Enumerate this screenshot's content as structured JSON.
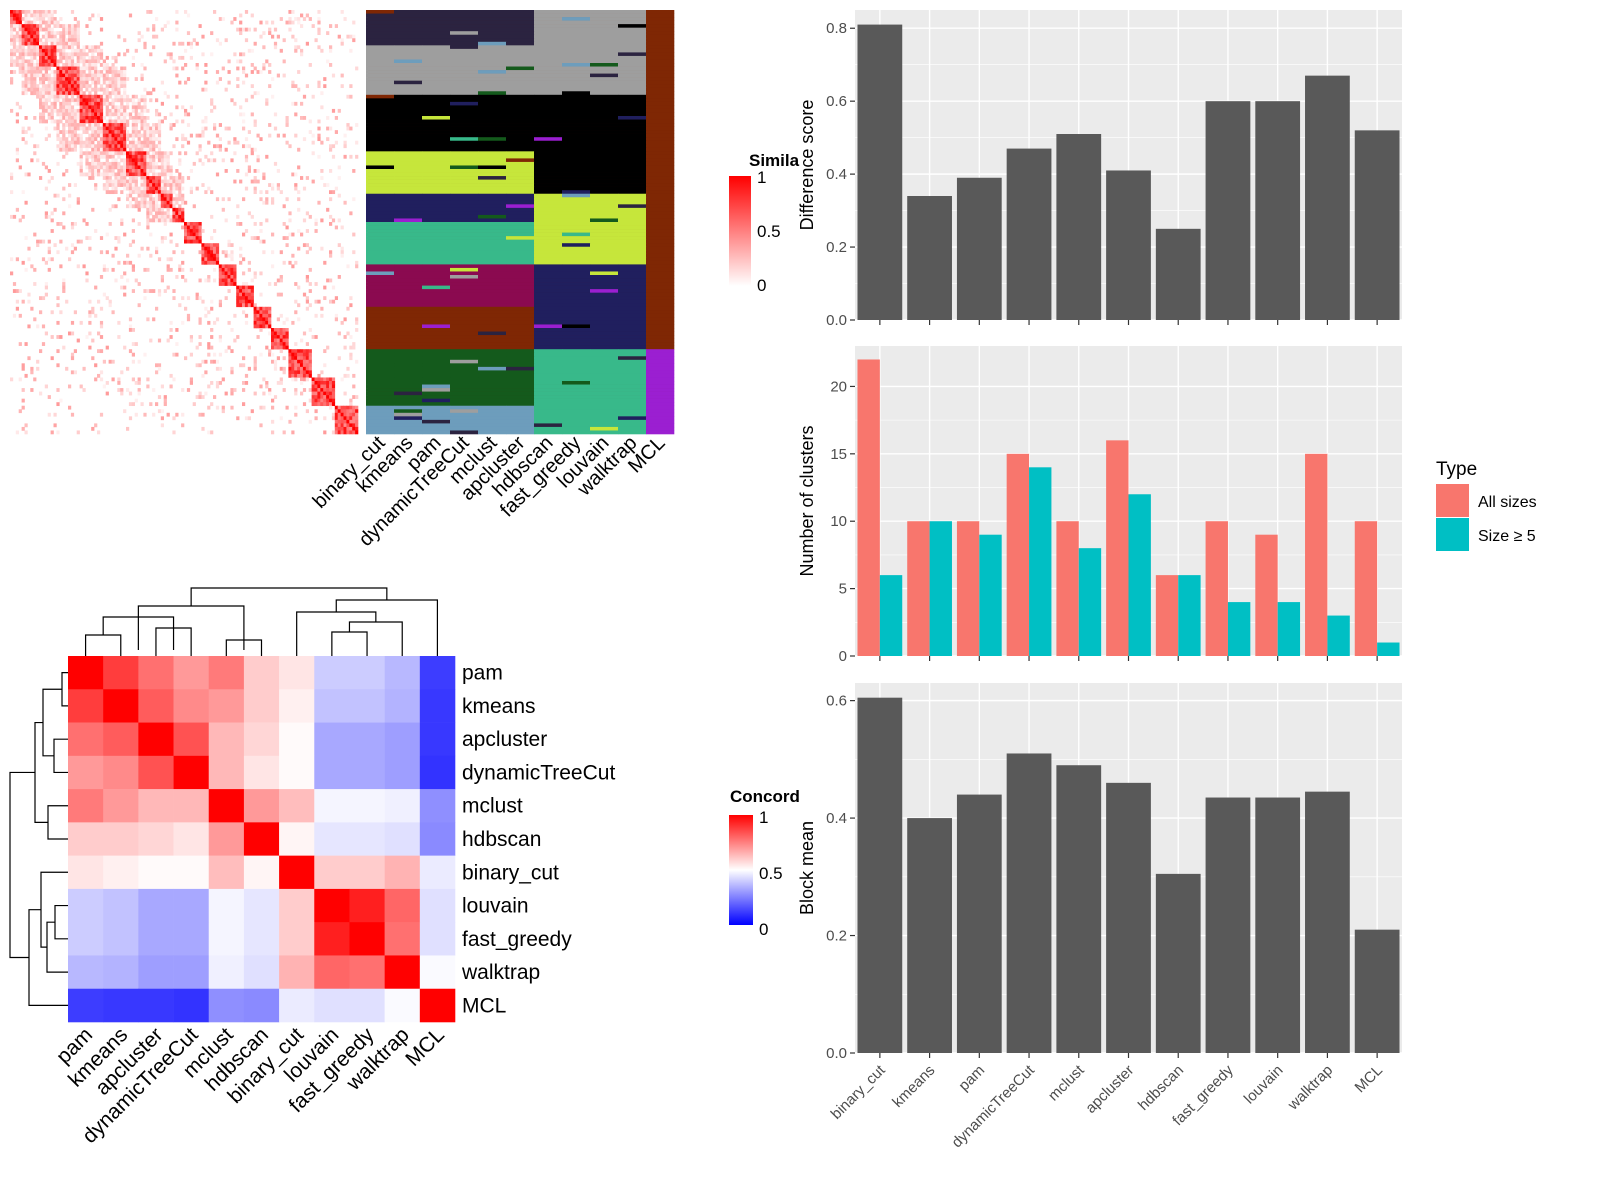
{
  "colors": {
    "panel_bg": "#ebebeb",
    "bar": "#595959",
    "all_sizes": "#f8766d",
    "size_ge5": "#00bfc4",
    "sim_high": "#ff0000",
    "sim_low": "#ffffff",
    "conc_high": "#ff0000",
    "conc_mid": "#ffffff",
    "conc_low": "#0000ff"
  },
  "chart_data": [
    {
      "type": "heatmap",
      "id": "similarity",
      "legend_title": "Simila",
      "legend_ticks": [
        "1",
        "0.5",
        "0"
      ],
      "scale": [
        0,
        1
      ],
      "size": 120
    },
    {
      "type": "heatmap",
      "id": "cluster_assignments",
      "columns": [
        "binary_cut",
        "kmeans",
        "pam",
        "dynamicTreeCut",
        "mclust",
        "apcluster",
        "hdbscan",
        "fast_greedy",
        "louvain",
        "walktrap",
        "MCL"
      ]
    },
    {
      "type": "heatmap",
      "id": "concordance",
      "legend_title": "Concord",
      "legend_ticks": [
        "1",
        "0.5",
        "0"
      ],
      "scale": [
        0,
        1
      ],
      "labels": [
        "pam",
        "kmeans",
        "apcluster",
        "dynamicTreeCut",
        "mclust",
        "hdbscan",
        "binary_cut",
        "louvain",
        "fast_greedy",
        "walktrap",
        "MCL"
      ],
      "matrix": [
        [
          1.0,
          0.88,
          0.78,
          0.7,
          0.76,
          0.6,
          0.55,
          0.4,
          0.4,
          0.36,
          0.12
        ],
        [
          0.88,
          1.0,
          0.82,
          0.73,
          0.7,
          0.6,
          0.53,
          0.38,
          0.38,
          0.35,
          0.11
        ],
        [
          0.78,
          0.82,
          1.0,
          0.84,
          0.64,
          0.58,
          0.51,
          0.33,
          0.33,
          0.31,
          0.11
        ],
        [
          0.7,
          0.73,
          0.84,
          1.0,
          0.64,
          0.55,
          0.51,
          0.33,
          0.33,
          0.31,
          0.1
        ],
        [
          0.76,
          0.7,
          0.64,
          0.64,
          1.0,
          0.7,
          0.63,
          0.48,
          0.48,
          0.47,
          0.28
        ],
        [
          0.6,
          0.6,
          0.58,
          0.55,
          0.7,
          1.0,
          0.52,
          0.45,
          0.45,
          0.44,
          0.27
        ],
        [
          0.55,
          0.53,
          0.51,
          0.51,
          0.63,
          0.52,
          1.0,
          0.6,
          0.6,
          0.65,
          0.46
        ],
        [
          0.4,
          0.38,
          0.33,
          0.33,
          0.48,
          0.45,
          0.6,
          1.0,
          0.94,
          0.8,
          0.44
        ],
        [
          0.4,
          0.38,
          0.33,
          0.33,
          0.48,
          0.45,
          0.6,
          0.94,
          1.0,
          0.78,
          0.44
        ],
        [
          0.36,
          0.35,
          0.31,
          0.31,
          0.47,
          0.44,
          0.65,
          0.8,
          0.78,
          1.0,
          0.49
        ],
        [
          0.12,
          0.11,
          0.11,
          0.1,
          0.28,
          0.27,
          0.46,
          0.44,
          0.44,
          0.49,
          1.0
        ]
      ]
    },
    {
      "type": "bar",
      "id": "difference_score",
      "categories": [
        "binary_cut",
        "kmeans",
        "pam",
        "dynamicTreeCut",
        "mclust",
        "apcluster",
        "hdbscan",
        "fast_greedy",
        "louvain",
        "walktrap",
        "MCL"
      ],
      "values": [
        0.81,
        0.34,
        0.39,
        0.47,
        0.51,
        0.41,
        0.25,
        0.6,
        0.6,
        0.67,
        0.52
      ],
      "ylabel": "Difference score",
      "ylim": [
        0,
        0.85
      ],
      "yticks": [
        0.0,
        0.2,
        0.4,
        0.6,
        0.8
      ],
      "ytick_labels": [
        "0.0",
        "0.2",
        "0.4",
        "0.6",
        "0.8"
      ],
      "grid": true
    },
    {
      "type": "bar",
      "id": "number_of_clusters",
      "categories": [
        "binary_cut",
        "kmeans",
        "pam",
        "dynamicTreeCut",
        "mclust",
        "apcluster",
        "hdbscan",
        "fast_greedy",
        "louvain",
        "walktrap",
        "MCL"
      ],
      "series": [
        {
          "name": "All sizes",
          "values": [
            22,
            10,
            10,
            15,
            10,
            16,
            6,
            10,
            9,
            15,
            10
          ]
        },
        {
          "name": "Size ≥ 5",
          "values": [
            6,
            10,
            9,
            14,
            8,
            12,
            6,
            4,
            4,
            3,
            1
          ]
        }
      ],
      "ylabel": "Number of clusters",
      "ylim": [
        0,
        23
      ],
      "yticks": [
        0,
        5,
        10,
        15,
        20
      ],
      "ytick_labels": [
        "0",
        "5",
        "10",
        "15",
        "20"
      ],
      "legend_title": "Type",
      "legend_position": "right",
      "grid": true
    },
    {
      "type": "bar",
      "id": "block_mean",
      "categories": [
        "binary_cut",
        "kmeans",
        "pam",
        "dynamicTreeCut",
        "mclust",
        "apcluster",
        "hdbscan",
        "fast_greedy",
        "louvain",
        "walktrap",
        "MCL"
      ],
      "values": [
        0.605,
        0.4,
        0.44,
        0.51,
        0.49,
        0.46,
        0.305,
        0.435,
        0.435,
        0.445,
        0.21
      ],
      "ylabel": "Block mean",
      "ylim": [
        0,
        0.63
      ],
      "yticks": [
        0.0,
        0.2,
        0.4,
        0.6
      ],
      "ytick_labels": [
        "0.0",
        "0.2",
        "0.4",
        "0.6"
      ],
      "grid": true
    }
  ]
}
